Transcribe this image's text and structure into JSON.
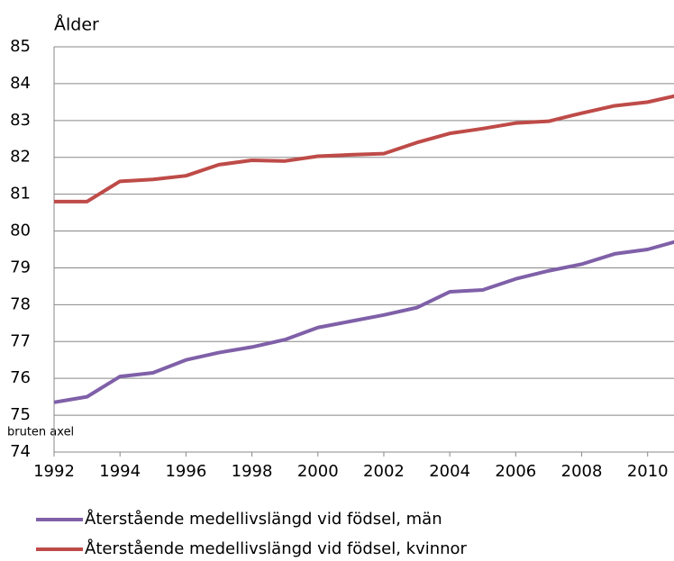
{
  "chart_data": {
    "type": "line",
    "y_label": "Ålder",
    "annotation": "bruten axel",
    "x": [
      1992,
      1993,
      1994,
      1995,
      1996,
      1997,
      1998,
      1999,
      2000,
      2001,
      2002,
      2003,
      2004,
      2005,
      2006,
      2007,
      2008,
      2009,
      2010,
      2011
    ],
    "xlim": [
      1992,
      2010.8
    ],
    "xticks": [
      1992,
      1994,
      1996,
      1998,
      2000,
      2002,
      2004,
      2006,
      2008,
      2010
    ],
    "ylim": [
      74,
      85
    ],
    "yticks": [
      74,
      75,
      76,
      77,
      78,
      79,
      80,
      81,
      82,
      83,
      84,
      85
    ],
    "grid": true,
    "legend": "bottom",
    "series": [
      {
        "name": "Återstående medellivslängd vid födsel, män",
        "color": "#7f60a8",
        "values": [
          75.35,
          75.5,
          76.05,
          76.15,
          76.5,
          76.7,
          76.85,
          77.05,
          77.38,
          77.55,
          77.72,
          77.92,
          78.35,
          78.4,
          78.7,
          78.92,
          79.1,
          79.38,
          79.5,
          79.75
        ]
      },
      {
        "name": "Återstående medellivslängd vid födsel, kvinnor",
        "color": "#be4b48",
        "values": [
          80.8,
          80.8,
          81.35,
          81.4,
          81.5,
          81.8,
          81.92,
          81.9,
          82.03,
          82.07,
          82.1,
          82.4,
          82.65,
          82.78,
          82.93,
          82.98,
          83.2,
          83.4,
          83.5,
          83.7
        ]
      }
    ]
  }
}
